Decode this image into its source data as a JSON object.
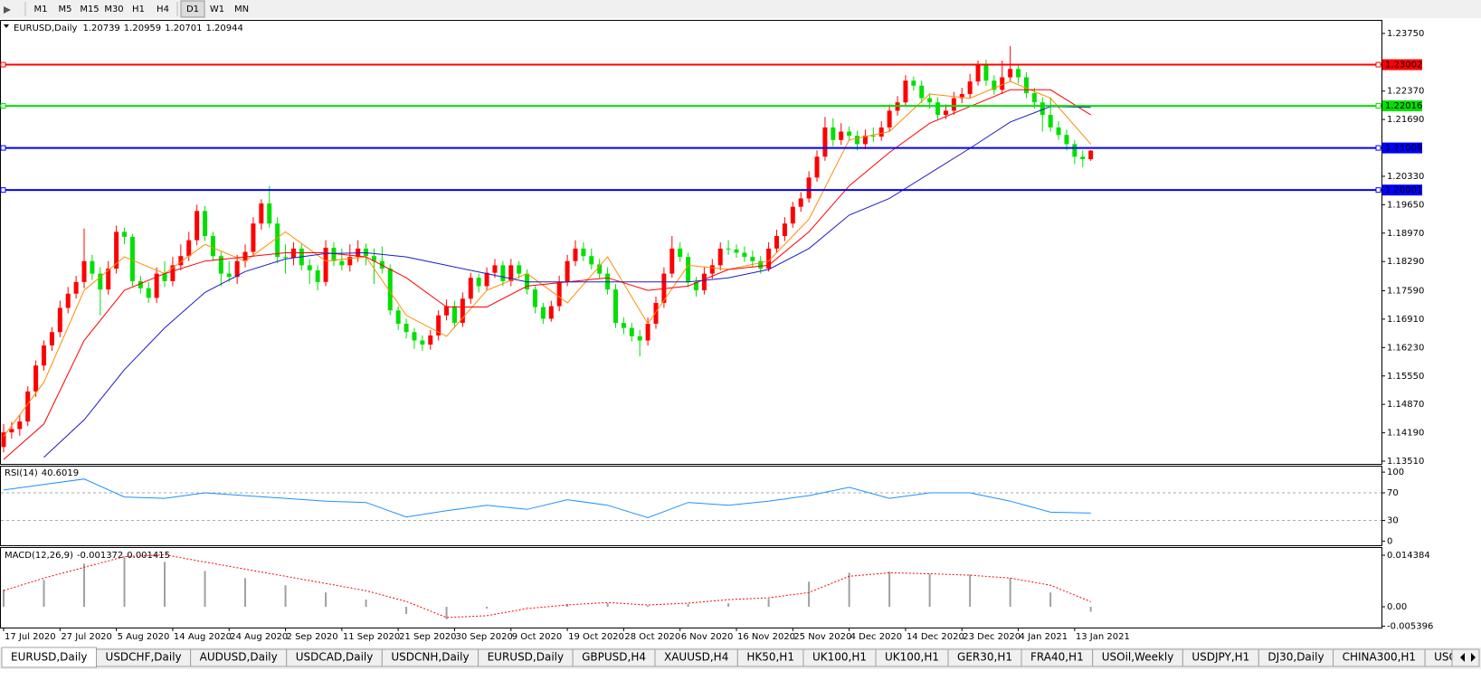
{
  "toolbar": [
    "M1",
    "M5",
    "M15",
    "M30",
    "H1",
    "H4",
    "D1",
    "W1",
    "MN"
  ],
  "tabs": [
    "EURUSD,Daily",
    "USDCHF,Daily",
    "AUDUSD,Daily",
    "USDCAD,Daily",
    "USDCNH,Daily",
    "EURUSD,Daily",
    "GBPUSD,H4",
    "XAUUSD,H4",
    "HK50,H1",
    "UK100,H1",
    "UK100,H1",
    "GER30,H1",
    "FRA40,H1",
    "USOil,Weekly",
    "USDJPY,H1",
    "DJ30,Daily",
    "CHINA300,H1",
    "USOil,"
  ],
  "chart_data": [
    {
      "type": "candlestick",
      "title": "EURUSD,Daily",
      "xlim": [
        -0.45,
        171.1
      ],
      "xticks": [
        {
          "value": 0,
          "label": "17 Jul 2020"
        },
        {
          "value": 7,
          "label": "27 Jul 2020"
        },
        {
          "value": 14,
          "label": "5 Aug 2020"
        },
        {
          "value": 21,
          "label": "14 Aug 2020"
        },
        {
          "value": 28,
          "label": "24 Aug 2020"
        },
        {
          "value": 35,
          "label": "2 Sep 2020"
        },
        {
          "value": 42,
          "label": "11 Sep 2020"
        },
        {
          "value": 49,
          "label": "21 Sep 2020"
        },
        {
          "value": 56,
          "label": "30 Sep 2020"
        },
        {
          "value": 63,
          "label": "9 Oct 2020"
        },
        {
          "value": 70,
          "label": "19 Oct 2020"
        },
        {
          "value": 77,
          "label": "28 Oct 2020"
        },
        {
          "value": 84,
          "label": "6 Nov 2020"
        },
        {
          "value": 91,
          "label": "16 Nov 2020"
        },
        {
          "value": 98,
          "label": "25 Nov 2020"
        },
        {
          "value": 105,
          "label": "4 Dec 2020"
        },
        {
          "value": 112,
          "label": "14 Dec 2020"
        },
        {
          "value": 119,
          "label": "23 Dec 2020"
        },
        {
          "value": 126,
          "label": "4 Jan 2021"
        },
        {
          "value": 133,
          "label": "13 Jan 2021"
        }
      ],
      "ylim": [
        1.13445,
        1.24031
      ],
      "yticks": [
        {
          "value": 1.2375,
          "label": "1.23750"
        },
        {
          "value": 1.2237,
          "label": "1.22370"
        },
        {
          "value": 1.2169,
          "label": "1.21690"
        },
        {
          "value": 1.2033,
          "label": "1.20330"
        },
        {
          "value": 1.1965,
          "label": "1.19650"
        },
        {
          "value": 1.1897,
          "label": "1.18970"
        },
        {
          "value": 1.1829,
          "label": "1.18290"
        },
        {
          "value": 1.1759,
          "label": "1.17590"
        },
        {
          "value": 1.1691,
          "label": "1.16910"
        },
        {
          "value": 1.1623,
          "label": "1.16230"
        },
        {
          "value": 1.1555,
          "label": "1.15550"
        },
        {
          "value": 1.1487,
          "label": "1.14870"
        },
        {
          "value": 1.1419,
          "label": "1.14190"
        },
        {
          "value": 1.1351,
          "label": "1.13510"
        }
      ],
      "up_color": "#ff0000",
      "down_color": "#00e000",
      "open": [
        1.1385,
        1.142,
        1.1428,
        1.1446,
        1.1518,
        1.158,
        1.1628,
        1.166,
        1.1718,
        1.1752,
        1.178,
        1.183,
        1.18,
        1.1762,
        1.1812,
        1.19,
        1.1888,
        1.1782,
        1.1765,
        1.1742,
        1.18,
        1.1782,
        1.182,
        1.1842,
        1.188,
        1.195,
        1.189,
        1.1842,
        1.18,
        1.1792,
        1.183,
        1.1852,
        1.192,
        1.1968,
        1.192,
        1.184,
        1.1838,
        1.186,
        1.182,
        1.1808,
        1.178,
        1.1862,
        1.183,
        1.182,
        1.184,
        1.186,
        1.1842,
        1.183,
        1.1812,
        1.1712,
        1.168,
        1.166,
        1.164,
        1.163,
        1.1652,
        1.17,
        1.1722,
        1.1682,
        1.174,
        1.179,
        1.177,
        1.1802,
        1.182,
        1.1782,
        1.182,
        1.18,
        1.1762,
        1.172,
        1.1692,
        1.1722,
        1.178,
        1.183,
        1.186,
        1.1842,
        1.1822,
        1.18,
        1.1762,
        1.1682,
        1.167,
        1.165,
        1.164,
        1.168,
        1.173,
        1.18,
        1.186,
        1.184,
        1.178,
        1.176,
        1.18,
        1.182,
        1.186,
        1.1858,
        1.185,
        1.184,
        1.183,
        1.1812,
        1.186,
        1.189,
        1.192,
        1.196,
        1.198,
        1.203,
        1.208,
        1.215,
        1.212,
        1.214,
        1.213,
        1.211,
        1.213,
        1.2128,
        1.215,
        1.219,
        1.221,
        1.2262,
        1.225,
        1.222,
        1.221,
        1.218,
        1.219,
        1.222,
        1.223,
        1.226,
        1.23,
        1.2262,
        1.224,
        1.227,
        1.229,
        1.227,
        1.2232,
        1.221,
        1.218,
        1.215,
        1.2132,
        1.211,
        1.208,
        1.20739
      ],
      "high": [
        1.144,
        1.1445,
        1.1462,
        1.153,
        1.1592,
        1.164,
        1.1672,
        1.1735,
        1.1768,
        1.1795,
        1.1908,
        1.1845,
        1.1815,
        1.183,
        1.1915,
        1.191,
        1.1895,
        1.1795,
        1.178,
        1.1815,
        1.183,
        1.184,
        1.187,
        1.19,
        1.1965,
        1.1962,
        1.19,
        1.1852,
        1.183,
        1.1845,
        1.187,
        1.1935,
        1.1978,
        1.201,
        1.1935,
        1.187,
        1.1875,
        1.187,
        1.1835,
        1.182,
        1.188,
        1.1875,
        1.186,
        1.187,
        1.188,
        1.1872,
        1.186,
        1.1865,
        1.1822,
        1.1722,
        1.1692,
        1.167,
        1.1652,
        1.1665,
        1.1712,
        1.1738,
        1.1735,
        1.1755,
        1.1802,
        1.18,
        1.1815,
        1.1835,
        1.183,
        1.1835,
        1.183,
        1.181,
        1.177,
        1.173,
        1.1735,
        1.1795,
        1.1845,
        1.188,
        1.1875,
        1.186,
        1.1835,
        1.1815,
        1.1775,
        1.1695,
        1.1682,
        1.1665,
        1.1695,
        1.1745,
        1.1815,
        1.189,
        1.1875,
        1.185,
        1.1792,
        1.1815,
        1.1835,
        1.1875,
        1.188,
        1.187,
        1.1865,
        1.1855,
        1.1842,
        1.1875,
        1.1905,
        1.1935,
        1.1972,
        1.1995,
        1.2045,
        1.2095,
        1.2175,
        1.2172,
        1.216,
        1.2152,
        1.2142,
        1.2145,
        1.215,
        1.2165,
        1.2205,
        1.2225,
        1.2275,
        1.2272,
        1.2262,
        1.2232,
        1.2222,
        1.2205,
        1.2235,
        1.2245,
        1.2278,
        1.231,
        1.2312,
        1.2275,
        1.231,
        1.2345,
        1.23,
        1.2282,
        1.2245,
        1.2222,
        1.2222,
        1.2165,
        1.2145,
        1.212,
        1.2095,
        1.20959
      ],
      "low": [
        1.1372,
        1.1405,
        1.1412,
        1.1435,
        1.1505,
        1.1568,
        1.1615,
        1.1648,
        1.1705,
        1.174,
        1.1765,
        1.1785,
        1.17,
        1.175,
        1.18,
        1.187,
        1.177,
        1.1752,
        1.173,
        1.173,
        1.1768,
        1.177,
        1.1808,
        1.183,
        1.1868,
        1.1878,
        1.183,
        1.177,
        1.178,
        1.1775,
        1.1815,
        1.184,
        1.1905,
        1.191,
        1.1825,
        1.18,
        1.182,
        1.1808,
        1.1775,
        1.176,
        1.177,
        1.1818,
        1.1808,
        1.1805,
        1.1828,
        1.182,
        1.1775,
        1.18,
        1.17,
        1.1665,
        1.1645,
        1.162,
        1.1615,
        1.1618,
        1.164,
        1.1688,
        1.167,
        1.1672,
        1.1728,
        1.1755,
        1.176,
        1.179,
        1.177,
        1.177,
        1.1788,
        1.175,
        1.1705,
        1.168,
        1.1685,
        1.171,
        1.177,
        1.1818,
        1.183,
        1.181,
        1.1788,
        1.175,
        1.167,
        1.1655,
        1.1638,
        1.1602,
        1.1628,
        1.1668,
        1.1718,
        1.179,
        1.1828,
        1.1768,
        1.1745,
        1.175,
        1.1788,
        1.1808,
        1.1845,
        1.1838,
        1.1828,
        1.1815,
        1.18,
        1.1805,
        1.185,
        1.1878,
        1.191,
        1.1948,
        1.197,
        1.202,
        1.207,
        1.2105,
        1.2108,
        1.2118,
        1.2095,
        1.2098,
        1.2115,
        1.2118,
        1.214,
        1.2178,
        1.22,
        1.2238,
        1.2208,
        1.2195,
        1.2168,
        1.217,
        1.218,
        1.2208,
        1.222,
        1.225,
        1.225,
        1.2228,
        1.223,
        1.226,
        1.2255,
        1.222,
        1.2195,
        1.214,
        1.214,
        1.212,
        1.2095,
        1.2062,
        1.2055,
        1.20701
      ],
      "close": [
        1.142,
        1.1428,
        1.1446,
        1.1518,
        1.158,
        1.1628,
        1.166,
        1.1718,
        1.1752,
        1.178,
        1.183,
        1.18,
        1.1762,
        1.1812,
        1.19,
        1.1888,
        1.1782,
        1.1765,
        1.1742,
        1.18,
        1.1782,
        1.182,
        1.1842,
        1.188,
        1.195,
        1.189,
        1.1842,
        1.18,
        1.1792,
        1.183,
        1.1852,
        1.192,
        1.1968,
        1.192,
        1.184,
        1.1838,
        1.186,
        1.182,
        1.1808,
        1.178,
        1.1862,
        1.183,
        1.182,
        1.184,
        1.186,
        1.1842,
        1.183,
        1.1812,
        1.1712,
        1.168,
        1.166,
        1.164,
        1.163,
        1.1652,
        1.17,
        1.1722,
        1.1682,
        1.174,
        1.179,
        1.177,
        1.1802,
        1.182,
        1.1782,
        1.182,
        1.18,
        1.1762,
        1.172,
        1.1692,
        1.1722,
        1.178,
        1.183,
        1.186,
        1.1842,
        1.1822,
        1.18,
        1.1762,
        1.1682,
        1.167,
        1.165,
        1.164,
        1.168,
        1.173,
        1.18,
        1.186,
        1.184,
        1.178,
        1.176,
        1.18,
        1.182,
        1.186,
        1.1858,
        1.185,
        1.184,
        1.183,
        1.1812,
        1.186,
        1.189,
        1.192,
        1.196,
        1.198,
        1.203,
        1.208,
        1.215,
        1.212,
        1.214,
        1.213,
        1.211,
        1.213,
        1.2128,
        1.215,
        1.219,
        1.221,
        1.2262,
        1.225,
        1.222,
        1.221,
        1.218,
        1.219,
        1.222,
        1.223,
        1.226,
        1.23,
        1.2262,
        1.224,
        1.227,
        1.229,
        1.227,
        1.2232,
        1.221,
        1.218,
        1.215,
        1.2132,
        1.211,
        1.208,
        1.2074,
        1.20944
      ],
      "overlays": [
        {
          "color": "#ff8c00",
          "x": [
            0,
            5,
            10,
            15,
            20,
            25,
            30,
            35,
            40,
            45,
            50,
            55,
            60,
            65,
            70,
            75,
            80,
            85,
            90,
            95,
            100,
            105,
            110,
            115,
            120,
            125,
            130,
            135
          ],
          "values": [
            1.141,
            1.154,
            1.176,
            1.184,
            1.18,
            1.187,
            1.183,
            1.19,
            1.183,
            1.184,
            1.17,
            1.165,
            1.176,
            1.18,
            1.173,
            1.184,
            1.168,
            1.182,
            1.181,
            1.183,
            1.193,
            1.212,
            1.214,
            1.223,
            1.222,
            1.226,
            1.222,
            1.211
          ]
        },
        {
          "color": "#ff0000",
          "x": [
            0,
            5,
            10,
            15,
            20,
            25,
            30,
            35,
            40,
            45,
            50,
            55,
            60,
            65,
            70,
            75,
            80,
            85,
            90,
            95,
            100,
            105,
            110,
            115,
            120,
            125,
            130,
            135
          ],
          "values": [
            1.1355,
            1.144,
            1.164,
            1.176,
            1.18,
            1.183,
            1.184,
            1.185,
            1.185,
            1.184,
            1.179,
            1.172,
            1.172,
            1.177,
            1.178,
            1.179,
            1.176,
            1.177,
            1.181,
            1.182,
            1.19,
            1.201,
            1.209,
            1.216,
            1.22,
            1.224,
            1.224,
            1.218
          ]
        },
        {
          "color": "#1c1cc8",
          "x": [
            0,
            5,
            10,
            15,
            20,
            25,
            30,
            35,
            40,
            45,
            50,
            55,
            60,
            65,
            70,
            75,
            80,
            85,
            90,
            95,
            100,
            105,
            110,
            115,
            120,
            125,
            130,
            135
          ],
          "values": [
            null,
            1.136,
            1.145,
            1.157,
            1.167,
            1.1755,
            1.1805,
            1.1835,
            1.1848,
            1.185,
            1.184,
            1.182,
            1.18,
            1.178,
            1.178,
            1.178,
            1.178,
            1.178,
            1.179,
            1.181,
            1.186,
            1.194,
            1.198,
            1.204,
            1.21,
            1.2163,
            1.22,
            1.2198
          ]
        }
      ],
      "levels": [
        {
          "value": 1.23002,
          "color": "#ff0000"
        },
        {
          "value": 1.22016,
          "color": "#00e000"
        },
        {
          "value": 1.21009,
          "color": "#0000ff"
        },
        {
          "value": 1.20001,
          "color": "#0000ff"
        }
      ]
    },
    {
      "type": "line",
      "title": "RSI(14)",
      "color": "#1e90ff",
      "xlim": [
        -0.45,
        171.1
      ],
      "ylim": [
        -6,
        108
      ],
      "yticks": [
        0,
        30,
        70,
        100
      ],
      "levels": [
        30,
        70
      ],
      "x": [
        0,
        5,
        10,
        15,
        20,
        25,
        30,
        35,
        40,
        45,
        50,
        55,
        60,
        65,
        70,
        75,
        80,
        85,
        90,
        95,
        100,
        105,
        110,
        115,
        120,
        125,
        130,
        135
      ],
      "values": [
        74,
        82,
        90,
        64,
        62,
        70,
        66,
        62,
        58,
        56,
        35,
        44,
        52,
        46,
        60,
        52,
        34,
        56,
        52,
        58,
        66,
        78,
        62,
        70,
        70,
        58,
        42,
        40.6019
      ]
    },
    {
      "type": "macd",
      "title": "MACD(12,26,9)",
      "color": "#a0a0a0",
      "signal_color": "#ff0000",
      "xlim": [
        -0.45,
        171.1
      ],
      "ylim": [
        -0.0058,
        0.0164
      ],
      "yticks": [
        0.014384,
        {
          "value": 0,
          "label": "0.00"
        },
        -0.005396
      ],
      "x": [
        0,
        5,
        10,
        15,
        20,
        25,
        30,
        35,
        40,
        45,
        50,
        55,
        60,
        65,
        70,
        75,
        80,
        85,
        90,
        95,
        100,
        105,
        110,
        115,
        120,
        125,
        130,
        135
      ],
      "values": [
        0.0048,
        0.0075,
        0.012,
        0.014,
        0.0125,
        0.01,
        0.008,
        0.006,
        0.004,
        0.002,
        -0.002,
        -0.0035,
        -0.0005,
        0.0,
        0.0008,
        0.001,
        0.0004,
        0.0008,
        0.001,
        0.0022,
        0.007,
        0.0095,
        0.0098,
        0.0092,
        0.009,
        0.008,
        0.004,
        -0.001372
      ],
      "signal": [
        0.0045,
        0.008,
        0.011,
        0.014,
        0.0145,
        0.0125,
        0.0105,
        0.0085,
        0.0065,
        0.0045,
        0.0015,
        -0.003,
        -0.0025,
        -0.0005,
        0.0005,
        0.0012,
        0.0005,
        0.001,
        0.002,
        0.0025,
        0.004,
        0.0085,
        0.0095,
        0.0092,
        0.0088,
        0.008,
        0.006,
        0.001415
      ]
    }
  ]
}
